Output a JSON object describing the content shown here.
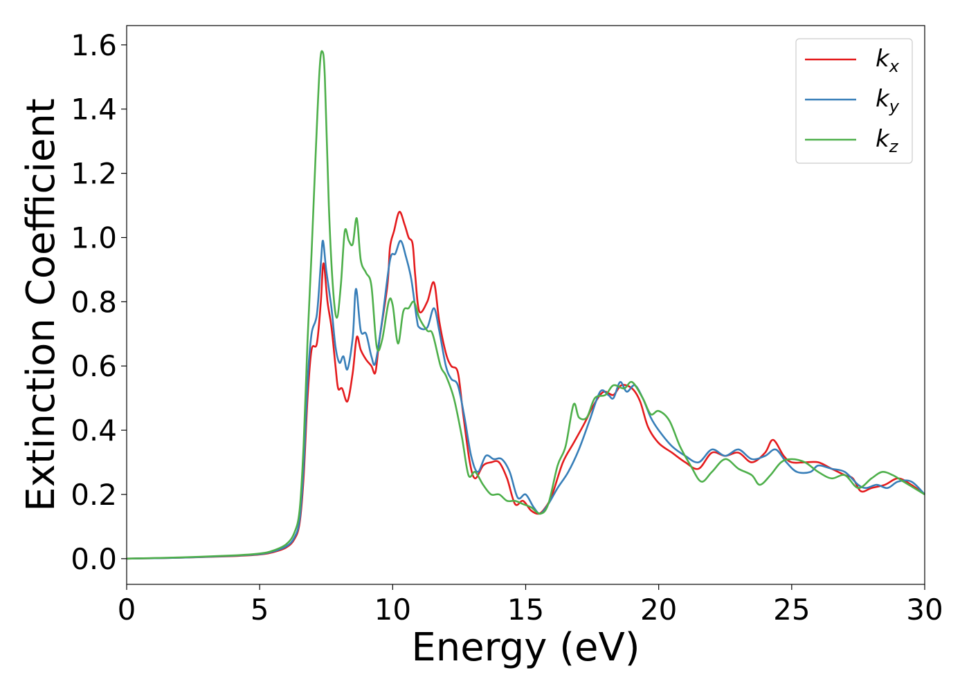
{
  "chart_data": {
    "type": "line",
    "title": "",
    "xlabel": "Energy (eV)",
    "ylabel": "Extinction Coefficient",
    "xlim": [
      0,
      30
    ],
    "ylim": [
      -0.08,
      1.66
    ],
    "xticks": [
      0,
      5,
      10,
      15,
      20,
      25,
      30
    ],
    "yticks": [
      0.0,
      0.2,
      0.4,
      0.6,
      0.8,
      1.0,
      1.2,
      1.4,
      1.6
    ],
    "xtick_labels": [
      "0",
      "5",
      "10",
      "15",
      "20",
      "25",
      "30"
    ],
    "ytick_labels": [
      "0.0",
      "0.2",
      "0.4",
      "0.6",
      "0.8",
      "1.0",
      "1.2",
      "1.4",
      "1.6"
    ],
    "grid": false,
    "legend": "top-right",
    "series": [
      {
        "name": "k_x",
        "label_main": "k",
        "label_sub": "x",
        "color": "#e41a1c",
        "points": [
          [
            0,
            0
          ],
          [
            2,
            0.003
          ],
          [
            4,
            0.008
          ],
          [
            5,
            0.013
          ],
          [
            5.5,
            0.02
          ],
          [
            6,
            0.035
          ],
          [
            6.3,
            0.06
          ],
          [
            6.5,
            0.11
          ],
          [
            6.65,
            0.25
          ],
          [
            6.8,
            0.5
          ],
          [
            6.95,
            0.65
          ],
          [
            7.15,
            0.67
          ],
          [
            7.3,
            0.8
          ],
          [
            7.4,
            0.92
          ],
          [
            7.55,
            0.8
          ],
          [
            7.7,
            0.72
          ],
          [
            7.85,
            0.6
          ],
          [
            7.95,
            0.53
          ],
          [
            8.1,
            0.53
          ],
          [
            8.3,
            0.49
          ],
          [
            8.5,
            0.58
          ],
          [
            8.65,
            0.69
          ],
          [
            8.8,
            0.65
          ],
          [
            9.0,
            0.62
          ],
          [
            9.2,
            0.6
          ],
          [
            9.35,
            0.58
          ],
          [
            9.5,
            0.68
          ],
          [
            9.8,
            0.85
          ],
          [
            9.9,
            0.97
          ],
          [
            10.05,
            1.02
          ],
          [
            10.25,
            1.08
          ],
          [
            10.45,
            1.04
          ],
          [
            10.6,
            1.0
          ],
          [
            10.75,
            0.98
          ],
          [
            10.85,
            0.88
          ],
          [
            11.0,
            0.77
          ],
          [
            11.3,
            0.8
          ],
          [
            11.55,
            0.86
          ],
          [
            11.75,
            0.74
          ],
          [
            12.0,
            0.64
          ],
          [
            12.2,
            0.6
          ],
          [
            12.45,
            0.58
          ],
          [
            12.65,
            0.45
          ],
          [
            12.9,
            0.3
          ],
          [
            13.1,
            0.25
          ],
          [
            13.4,
            0.29
          ],
          [
            13.7,
            0.3
          ],
          [
            14.0,
            0.3
          ],
          [
            14.3,
            0.25
          ],
          [
            14.6,
            0.17
          ],
          [
            14.9,
            0.18
          ],
          [
            15.2,
            0.15
          ],
          [
            15.5,
            0.14
          ],
          [
            15.75,
            0.16
          ],
          [
            16.0,
            0.2
          ],
          [
            16.4,
            0.3
          ],
          [
            16.8,
            0.36
          ],
          [
            17.2,
            0.42
          ],
          [
            17.5,
            0.47
          ],
          [
            17.8,
            0.51
          ],
          [
            18.0,
            0.52
          ],
          [
            18.3,
            0.51
          ],
          [
            18.6,
            0.54
          ],
          [
            19.0,
            0.53
          ],
          [
            19.3,
            0.49
          ],
          [
            19.6,
            0.41
          ],
          [
            20.0,
            0.36
          ],
          [
            20.5,
            0.33
          ],
          [
            21.0,
            0.3
          ],
          [
            21.5,
            0.28
          ],
          [
            22.0,
            0.33
          ],
          [
            22.5,
            0.32
          ],
          [
            23.0,
            0.33
          ],
          [
            23.5,
            0.3
          ],
          [
            24.0,
            0.33
          ],
          [
            24.3,
            0.37
          ],
          [
            24.7,
            0.32
          ],
          [
            25.0,
            0.3
          ],
          [
            25.5,
            0.3
          ],
          [
            26.0,
            0.3
          ],
          [
            26.5,
            0.28
          ],
          [
            27.0,
            0.26
          ],
          [
            27.3,
            0.25
          ],
          [
            27.6,
            0.21
          ],
          [
            28.0,
            0.22
          ],
          [
            28.5,
            0.23
          ],
          [
            29.0,
            0.25
          ],
          [
            29.5,
            0.23
          ],
          [
            30.0,
            0.2
          ]
        ]
      },
      {
        "name": "k_y",
        "label_main": "k",
        "label_sub": "y",
        "color": "#377eb8",
        "points": [
          [
            0,
            0
          ],
          [
            2,
            0.003
          ],
          [
            4,
            0.009
          ],
          [
            5,
            0.014
          ],
          [
            5.5,
            0.022
          ],
          [
            6,
            0.038
          ],
          [
            6.3,
            0.065
          ],
          [
            6.5,
            0.12
          ],
          [
            6.65,
            0.28
          ],
          [
            6.8,
            0.55
          ],
          [
            6.95,
            0.7
          ],
          [
            7.15,
            0.76
          ],
          [
            7.3,
            0.92
          ],
          [
            7.38,
            0.99
          ],
          [
            7.5,
            0.9
          ],
          [
            7.7,
            0.78
          ],
          [
            7.85,
            0.66
          ],
          [
            8.0,
            0.61
          ],
          [
            8.15,
            0.63
          ],
          [
            8.3,
            0.59
          ],
          [
            8.5,
            0.69
          ],
          [
            8.62,
            0.84
          ],
          [
            8.8,
            0.71
          ],
          [
            9.0,
            0.7
          ],
          [
            9.2,
            0.63
          ],
          [
            9.35,
            0.61
          ],
          [
            9.6,
            0.74
          ],
          [
            9.9,
            0.93
          ],
          [
            10.1,
            0.95
          ],
          [
            10.3,
            0.99
          ],
          [
            10.5,
            0.94
          ],
          [
            10.7,
            0.87
          ],
          [
            10.9,
            0.75
          ],
          [
            11.0,
            0.72
          ],
          [
            11.3,
            0.72
          ],
          [
            11.55,
            0.78
          ],
          [
            11.75,
            0.71
          ],
          [
            12.0,
            0.6
          ],
          [
            12.2,
            0.56
          ],
          [
            12.45,
            0.54
          ],
          [
            12.7,
            0.44
          ],
          [
            12.95,
            0.32
          ],
          [
            13.2,
            0.27
          ],
          [
            13.5,
            0.32
          ],
          [
            13.8,
            0.31
          ],
          [
            14.1,
            0.31
          ],
          [
            14.4,
            0.27
          ],
          [
            14.7,
            0.19
          ],
          [
            15.0,
            0.2
          ],
          [
            15.3,
            0.16
          ],
          [
            15.55,
            0.14
          ],
          [
            15.85,
            0.17
          ],
          [
            16.2,
            0.22
          ],
          [
            16.6,
            0.27
          ],
          [
            17.0,
            0.34
          ],
          [
            17.4,
            0.43
          ],
          [
            17.8,
            0.52
          ],
          [
            18.1,
            0.51
          ],
          [
            18.3,
            0.5
          ],
          [
            18.55,
            0.55
          ],
          [
            18.8,
            0.52
          ],
          [
            19.1,
            0.54
          ],
          [
            19.4,
            0.5
          ],
          [
            19.7,
            0.44
          ],
          [
            20.0,
            0.4
          ],
          [
            20.5,
            0.35
          ],
          [
            21.0,
            0.32
          ],
          [
            21.5,
            0.3
          ],
          [
            22.0,
            0.34
          ],
          [
            22.5,
            0.32
          ],
          [
            23.0,
            0.34
          ],
          [
            23.5,
            0.31
          ],
          [
            24.0,
            0.32
          ],
          [
            24.4,
            0.34
          ],
          [
            24.8,
            0.3
          ],
          [
            25.2,
            0.27
          ],
          [
            25.7,
            0.27
          ],
          [
            26.0,
            0.29
          ],
          [
            26.5,
            0.28
          ],
          [
            27.0,
            0.27
          ],
          [
            27.5,
            0.23
          ],
          [
            27.8,
            0.22
          ],
          [
            28.2,
            0.23
          ],
          [
            28.6,
            0.22
          ],
          [
            29.0,
            0.24
          ],
          [
            29.5,
            0.24
          ],
          [
            30.0,
            0.2
          ]
        ]
      },
      {
        "name": "k_z",
        "label_main": "k",
        "label_sub": "z",
        "color": "#4daf4a",
        "points": [
          [
            0,
            0
          ],
          [
            2,
            0.004
          ],
          [
            4,
            0.01
          ],
          [
            5,
            0.016
          ],
          [
            5.5,
            0.025
          ],
          [
            6,
            0.045
          ],
          [
            6.3,
            0.08
          ],
          [
            6.5,
            0.15
          ],
          [
            6.65,
            0.35
          ],
          [
            6.8,
            0.68
          ],
          [
            6.95,
            0.95
          ],
          [
            7.1,
            1.25
          ],
          [
            7.25,
            1.52
          ],
          [
            7.35,
            1.58
          ],
          [
            7.45,
            1.5
          ],
          [
            7.6,
            1.1
          ],
          [
            7.75,
            0.85
          ],
          [
            7.9,
            0.75
          ],
          [
            8.05,
            0.85
          ],
          [
            8.2,
            1.02
          ],
          [
            8.35,
            0.99
          ],
          [
            8.5,
            0.98
          ],
          [
            8.65,
            1.06
          ],
          [
            8.8,
            0.93
          ],
          [
            9.0,
            0.89
          ],
          [
            9.2,
            0.85
          ],
          [
            9.4,
            0.66
          ],
          [
            9.6,
            0.68
          ],
          [
            9.85,
            0.8
          ],
          [
            10.0,
            0.79
          ],
          [
            10.2,
            0.67
          ],
          [
            10.4,
            0.77
          ],
          [
            10.6,
            0.78
          ],
          [
            10.8,
            0.8
          ],
          [
            11.0,
            0.75
          ],
          [
            11.3,
            0.71
          ],
          [
            11.5,
            0.7
          ],
          [
            11.8,
            0.6
          ],
          [
            12.0,
            0.57
          ],
          [
            12.3,
            0.5
          ],
          [
            12.6,
            0.38
          ],
          [
            12.85,
            0.26
          ],
          [
            13.1,
            0.27
          ],
          [
            13.4,
            0.23
          ],
          [
            13.7,
            0.2
          ],
          [
            14.0,
            0.2
          ],
          [
            14.3,
            0.18
          ],
          [
            14.6,
            0.18
          ],
          [
            14.9,
            0.17
          ],
          [
            15.2,
            0.16
          ],
          [
            15.55,
            0.14
          ],
          [
            15.85,
            0.17
          ],
          [
            16.2,
            0.29
          ],
          [
            16.5,
            0.35
          ],
          [
            16.8,
            0.48
          ],
          [
            17.0,
            0.44
          ],
          [
            17.3,
            0.44
          ],
          [
            17.6,
            0.5
          ],
          [
            18.0,
            0.51
          ],
          [
            18.3,
            0.54
          ],
          [
            18.7,
            0.53
          ],
          [
            19.0,
            0.55
          ],
          [
            19.4,
            0.5
          ],
          [
            19.7,
            0.45
          ],
          [
            20.0,
            0.46
          ],
          [
            20.4,
            0.43
          ],
          [
            20.8,
            0.35
          ],
          [
            21.2,
            0.29
          ],
          [
            21.6,
            0.24
          ],
          [
            22.0,
            0.27
          ],
          [
            22.5,
            0.31
          ],
          [
            23.0,
            0.28
          ],
          [
            23.5,
            0.26
          ],
          [
            23.8,
            0.23
          ],
          [
            24.2,
            0.26
          ],
          [
            24.6,
            0.3
          ],
          [
            25.0,
            0.31
          ],
          [
            25.5,
            0.3
          ],
          [
            26.0,
            0.27
          ],
          [
            26.5,
            0.25
          ],
          [
            27.0,
            0.26
          ],
          [
            27.5,
            0.22
          ],
          [
            28.0,
            0.25
          ],
          [
            28.4,
            0.27
          ],
          [
            28.8,
            0.26
          ],
          [
            29.2,
            0.24
          ],
          [
            29.6,
            0.22
          ],
          [
            30.0,
            0.2
          ]
        ]
      }
    ]
  }
}
